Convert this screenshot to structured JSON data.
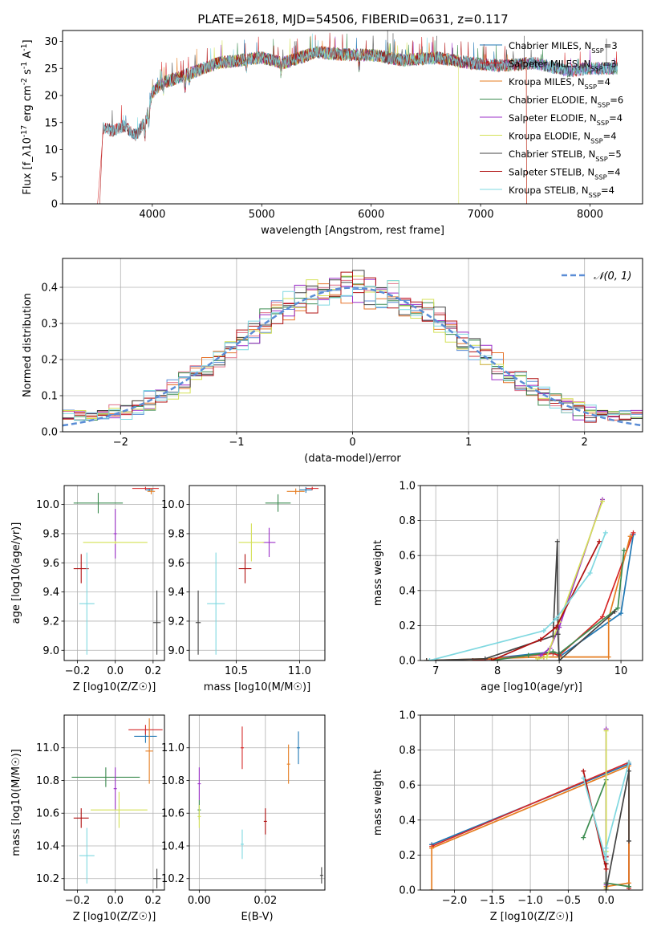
{
  "figure_title": "PLATE=2618, MJD=54506, FIBERID=0631, z=0.117",
  "colors": {
    "chabrier_miles": "#1f77b4",
    "salpeter_miles": "#d62728",
    "kroupa_miles": "#e67e22",
    "chabrier_elodie": "#3c8c50",
    "salpeter_elodie": "#9b2fc8",
    "kroupa_elodie": "#d4e157",
    "chabrier_stelib": "#444444",
    "salpeter_stelib": "#b01010",
    "kroupa_stelib": "#7fd8e0",
    "normal_curve": "#5b8dd6"
  },
  "chart_data": [
    {
      "id": "spectrum",
      "type": "line",
      "title": "PLATE=2618, MJD=54506, FIBERID=0631, z=0.117",
      "xlabel": "wavelength [Angstrom, rest frame]",
      "ylabel": "Flux [f_λ10^-17 erg cm^-2 s^-1 A^-1]",
      "xlim": [
        3180,
        8480
      ],
      "ylim": [
        0,
        32
      ],
      "xticks": [
        4000,
        5000,
        6000,
        7000,
        8000
      ],
      "yticks": [
        0,
        5,
        10,
        15,
        20,
        25,
        30
      ],
      "legend_position": "upper-right",
      "legend": [
        "Chabrier MILES, N_SSP=3",
        "Salpeter MILES, N_SSP=3",
        "Kroupa MILES, N_SSP=4",
        "Chabrier ELODIE, N_SSP=6",
        "Salpeter ELODIE, N_SSP=4",
        "Kroupa ELODIE, N_SSP=4",
        "Chabrier STELIB, N_SSP=5",
        "Salpeter STELIB, N_SSP=4",
        "Kroupa STELIB, N_SSP=4"
      ],
      "continuum": {
        "x": [
          3550,
          3650,
          3750,
          3850,
          3950,
          4000,
          4100,
          4200,
          4400,
          4600,
          4800,
          5000,
          5200,
          5500,
          5800,
          6000,
          6300,
          6600,
          6900,
          7200,
          7500,
          7800,
          8000,
          8250
        ],
        "y": [
          14,
          13.5,
          14.5,
          12.5,
          16,
          20.5,
          22.5,
          23,
          24.5,
          26,
          26.5,
          27,
          26,
          28,
          27.5,
          27.5,
          26.5,
          27,
          26,
          25.5,
          26,
          24.5,
          25,
          25
        ]
      }
    },
    {
      "id": "residuals",
      "type": "step",
      "xlabel": "(data-model)/error",
      "ylabel": "Normed distribution",
      "xlim": [
        -2.5,
        2.5
      ],
      "ylim": [
        0,
        0.48
      ],
      "xticks": [
        -2,
        -1,
        0,
        1,
        2
      ],
      "yticks": [
        0.0,
        0.1,
        0.2,
        0.3,
        0.4
      ],
      "legend": [
        "𝒩(0, 1)"
      ],
      "legend_position": "upper-right",
      "bin_edges_from": -2.5,
      "bin_width": 0.1,
      "normal_curve": {
        "mean": 0,
        "sigma": 1
      }
    },
    {
      "id": "age-vs-z",
      "type": "scatter-errorbar",
      "xlabel": "Z [log10(Z/Z☉)]",
      "ylabel": "age [log10(age/yr)]",
      "xlim": [
        -0.27,
        0.26
      ],
      "ylim": [
        8.93,
        10.13
      ],
      "xticks": [
        -0.2,
        0.0,
        0.2
      ],
      "yticks": [
        9.0,
        9.2,
        9.4,
        9.6,
        9.8,
        10.0
      ],
      "points": [
        {
          "s": "chabrier_miles",
          "x": 0.18,
          "y": 10.1,
          "xerr": 0.02,
          "yerr": 0.01
        },
        {
          "s": "salpeter_miles",
          "x": 0.16,
          "y": 10.11,
          "xerr": 0.07,
          "yerr": 0.005
        },
        {
          "s": "kroupa_miles",
          "x": 0.19,
          "y": 10.09,
          "xerr": 0.02,
          "yerr": 0.02
        },
        {
          "s": "chabrier_elodie",
          "x": -0.09,
          "y": 10.01,
          "xerr": 0.13,
          "yerr": 0.07
        },
        {
          "s": "salpeter_elodie",
          "x": 0.0,
          "y": 9.8,
          "xerr": 0.0,
          "yerr": 0.17
        },
        {
          "s": "kroupa_elodie",
          "x": 0.0,
          "y": 9.74,
          "xerr": 0.17,
          "yerr": 0.0
        },
        {
          "s": "chabrier_stelib",
          "x": 0.22,
          "y": 9.19,
          "xerr": 0.02,
          "yerr": 0.22
        },
        {
          "s": "salpeter_stelib",
          "x": -0.18,
          "y": 9.56,
          "xerr": 0.04,
          "yerr": 0.1
        },
        {
          "s": "kroupa_stelib",
          "x": -0.15,
          "y": 9.32,
          "xerr": 0.04,
          "yerr": 0.35
        }
      ]
    },
    {
      "id": "age-vs-mass",
      "type": "scatter-errorbar",
      "xlabel": "mass [log10(M/M☉)]",
      "ylabel": "",
      "xlim": [
        10.13,
        11.2
      ],
      "ylim": [
        8.93,
        10.13
      ],
      "xticks": [
        10.5,
        11.0
      ],
      "yticks": [
        9.0,
        9.2,
        9.4,
        9.6,
        9.8,
        10.0
      ],
      "points": [
        {
          "s": "chabrier_miles",
          "x": 11.05,
          "y": 10.1,
          "xerr": 0.05,
          "yerr": 0.02
        },
        {
          "s": "salpeter_miles",
          "x": 11.1,
          "y": 10.11,
          "xerr": 0.05,
          "yerr": 0.01
        },
        {
          "s": "kroupa_miles",
          "x": 10.97,
          "y": 10.09,
          "xerr": 0.07,
          "yerr": 0.02
        },
        {
          "s": "chabrier_elodie",
          "x": 10.83,
          "y": 10.01,
          "xerr": 0.1,
          "yerr": 0.06
        },
        {
          "s": "salpeter_elodie",
          "x": 10.76,
          "y": 9.74,
          "xerr": 0.05,
          "yerr": 0.1
        },
        {
          "s": "kroupa_elodie",
          "x": 10.62,
          "y": 9.74,
          "xerr": 0.1,
          "yerr": 0.13
        },
        {
          "s": "chabrier_stelib",
          "x": 10.2,
          "y": 9.19,
          "xerr": 0.02,
          "yerr": 0.22
        },
        {
          "s": "salpeter_stelib",
          "x": 10.57,
          "y": 9.56,
          "xerr": 0.05,
          "yerr": 0.1
        },
        {
          "s": "kroupa_stelib",
          "x": 10.34,
          "y": 9.32,
          "xerr": 0.07,
          "yerr": 0.35
        }
      ]
    },
    {
      "id": "weight-vs-age",
      "type": "line",
      "xlabel": "age [log10(age/yr)]",
      "ylabel": "mass weight",
      "xlim": [
        6.75,
        10.35
      ],
      "ylim": [
        0,
        1
      ],
      "xticks": [
        7,
        8,
        9,
        10
      ],
      "yticks": [
        0.0,
        0.2,
        0.4,
        0.6,
        0.8,
        1.0
      ],
      "series": [
        {
          "s": "chabrier_miles",
          "x": [
            7.6,
            8.9,
            9.0,
            10.0,
            10.2
          ],
          "y": [
            0.0,
            0.05,
            0.02,
            0.27,
            0.72
          ]
        },
        {
          "s": "salpeter_miles",
          "x": [
            7.6,
            8.9,
            9.0,
            9.7,
            10.2
          ],
          "y": [
            0.0,
            0.04,
            0.03,
            0.25,
            0.73
          ]
        },
        {
          "s": "kroupa_miles",
          "x": [
            6.85,
            8.75,
            9.8,
            9.8,
            10.15
          ],
          "y": [
            0.0,
            0.02,
            0.02,
            0.24,
            0.71
          ]
        },
        {
          "s": "chabrier_elodie",
          "x": [
            7.9,
            8.5,
            8.9,
            9.0,
            9.95,
            10.05
          ],
          "y": [
            0.0,
            0.03,
            0.05,
            0.04,
            0.3,
            0.63
          ]
        },
        {
          "s": "salpeter_elodie",
          "x": [
            8.7,
            8.85,
            9.0,
            9.7
          ],
          "y": [
            0.03,
            0.07,
            0.19,
            0.92
          ]
        },
        {
          "s": "kroupa_elodie",
          "x": [
            8.65,
            8.8,
            9.0,
            9.7
          ],
          "y": [
            0.01,
            0.02,
            0.22,
            0.91
          ]
        },
        {
          "s": "chabrier_stelib",
          "x": [
            6.85,
            7.8,
            8.9,
            8.97,
            8.98,
            9.0,
            9.9
          ],
          "y": [
            0.0,
            0.01,
            0.14,
            0.68,
            0.15,
            0.0,
            0.28
          ]
        },
        {
          "s": "salpeter_stelib",
          "x": [
            7.9,
            8.7,
            8.95,
            9.65
          ],
          "y": [
            0.0,
            0.12,
            0.19,
            0.68
          ]
        },
        {
          "s": "kroupa_stelib",
          "x": [
            6.9,
            8.75,
            8.95,
            9.5,
            9.75
          ],
          "y": [
            0.0,
            0.17,
            0.24,
            0.5,
            0.73
          ]
        }
      ]
    },
    {
      "id": "mass-vs-z",
      "type": "scatter-errorbar",
      "xlabel": "Z [log10(Z/Z☉)]",
      "ylabel": "mass [log10(M/M☉)]",
      "xlim": [
        -0.27,
        0.26
      ],
      "ylim": [
        10.13,
        11.2
      ],
      "xticks": [
        -0.2,
        0.0,
        0.2
      ],
      "yticks": [
        10.2,
        10.4,
        10.6,
        10.8,
        11.0
      ],
      "points": [
        {
          "s": "chabrier_miles",
          "x": 0.16,
          "y": 11.07,
          "xerr": 0.06,
          "yerr": 0.04
        },
        {
          "s": "salpeter_miles",
          "x": 0.16,
          "y": 11.11,
          "xerr": 0.09,
          "yerr": 0.03
        },
        {
          "s": "kroupa_miles",
          "x": 0.18,
          "y": 10.98,
          "xerr": 0.02,
          "yerr": 0.2
        },
        {
          "s": "chabrier_elodie",
          "x": -0.05,
          "y": 10.82,
          "xerr": 0.18,
          "yerr": 0.06
        },
        {
          "s": "salpeter_elodie",
          "x": 0.0,
          "y": 10.75,
          "xerr": 0.0,
          "yerr": 0.13
        },
        {
          "s": "kroupa_elodie",
          "x": 0.02,
          "y": 10.62,
          "xerr": 0.15,
          "yerr": 0.11
        },
        {
          "s": "chabrier_stelib",
          "x": 0.22,
          "y": 10.2,
          "xerr": 0.02,
          "yerr": 0.06
        },
        {
          "s": "salpeter_stelib",
          "x": -0.18,
          "y": 10.57,
          "xerr": 0.04,
          "yerr": 0.06
        },
        {
          "s": "kroupa_stelib",
          "x": -0.15,
          "y": 10.34,
          "xerr": 0.04,
          "yerr": 0.17
        }
      ]
    },
    {
      "id": "mass-vs-ebv",
      "type": "scatter-errorbar",
      "xlabel": "E(B-V)",
      "ylabel": "",
      "xlim": [
        -0.003,
        0.038
      ],
      "ylim": [
        10.13,
        11.2
      ],
      "xticks": [
        0.0,
        0.02
      ],
      "yticks": [
        10.2,
        10.4,
        10.6,
        10.8,
        11.0
      ],
      "points": [
        {
          "s": "chabrier_miles",
          "x": 0.03,
          "y": 11.0,
          "xerr": 0.0,
          "yerr": 0.1
        },
        {
          "s": "salpeter_miles",
          "x": 0.013,
          "y": 11.0,
          "xerr": 0.0,
          "yerr": 0.13
        },
        {
          "s": "kroupa_miles",
          "x": 0.027,
          "y": 10.9,
          "xerr": 0.0,
          "yerr": 0.12
        },
        {
          "s": "chabrier_elodie",
          "x": 0.0,
          "y": 10.62,
          "xerr": 0.0,
          "yerr": 0.06
        },
        {
          "s": "salpeter_elodie",
          "x": 0.0,
          "y": 10.78,
          "xerr": 0.0,
          "yerr": 0.1
        },
        {
          "s": "kroupa_elodie",
          "x": 0.0,
          "y": 10.58,
          "xerr": 0.0,
          "yerr": 0.07
        },
        {
          "s": "chabrier_stelib",
          "x": 0.037,
          "y": 10.22,
          "xerr": 0.0,
          "yerr": 0.05
        },
        {
          "s": "salpeter_stelib",
          "x": 0.02,
          "y": 10.55,
          "xerr": 0.0,
          "yerr": 0.08
        },
        {
          "s": "kroupa_stelib",
          "x": 0.013,
          "y": 10.41,
          "xerr": 0.0,
          "yerr": 0.09
        }
      ]
    },
    {
      "id": "weight-vs-z",
      "type": "line",
      "xlabel": "Z [log10(Z/Z☉)]",
      "ylabel": "mass weight",
      "xlim": [
        -2.45,
        0.48
      ],
      "ylim": [
        0,
        1
      ],
      "xticks": [
        -2.0,
        -1.5,
        -1.0,
        -0.5,
        0.0
      ],
      "yticks": [
        0.0,
        0.2,
        0.4,
        0.6,
        0.8,
        1.0
      ],
      "series": [
        {
          "s": "chabrier_miles",
          "x": [
            -2.3,
            0.3,
            0.3
          ],
          "y": [
            0.26,
            0.72,
            0.02
          ]
        },
        {
          "s": "salpeter_miles",
          "x": [
            -2.3,
            0.3,
            0.3
          ],
          "y": [
            0.25,
            0.73,
            0.01
          ]
        },
        {
          "s": "kroupa_miles",
          "x": [
            -2.3,
            -2.3,
            0.3,
            0.3,
            0.0,
            0.0
          ],
          "y": [
            0.0,
            0.24,
            0.71,
            0.04,
            0.02,
            0.0
          ]
        },
        {
          "s": "chabrier_elodie",
          "x": [
            -0.3,
            0.0,
            0.0,
            0.3
          ],
          "y": [
            0.3,
            0.63,
            0.04,
            0.02
          ]
        },
        {
          "s": "salpeter_elodie",
          "x": [
            0.0,
            0.0,
            0.0
          ],
          "y": [
            0.92,
            0.19,
            0.03
          ]
        },
        {
          "s": "kroupa_elodie",
          "x": [
            0.0,
            0.0,
            0.0
          ],
          "y": [
            0.91,
            0.22,
            0.01
          ]
        },
        {
          "s": "chabrier_stelib",
          "x": [
            0.0,
            0.0,
            0.3,
            0.3
          ],
          "y": [
            0.15,
            0.0,
            0.68,
            0.28
          ]
        },
        {
          "s": "salpeter_stelib",
          "x": [
            -0.3,
            0.0,
            0.0
          ],
          "y": [
            0.68,
            0.12,
            0.19
          ]
        },
        {
          "s": "kroupa_stelib",
          "x": [
            -0.3,
            0.0,
            0.0,
            0.3
          ],
          "y": [
            0.64,
            0.17,
            0.24,
            0.73
          ]
        }
      ]
    }
  ]
}
